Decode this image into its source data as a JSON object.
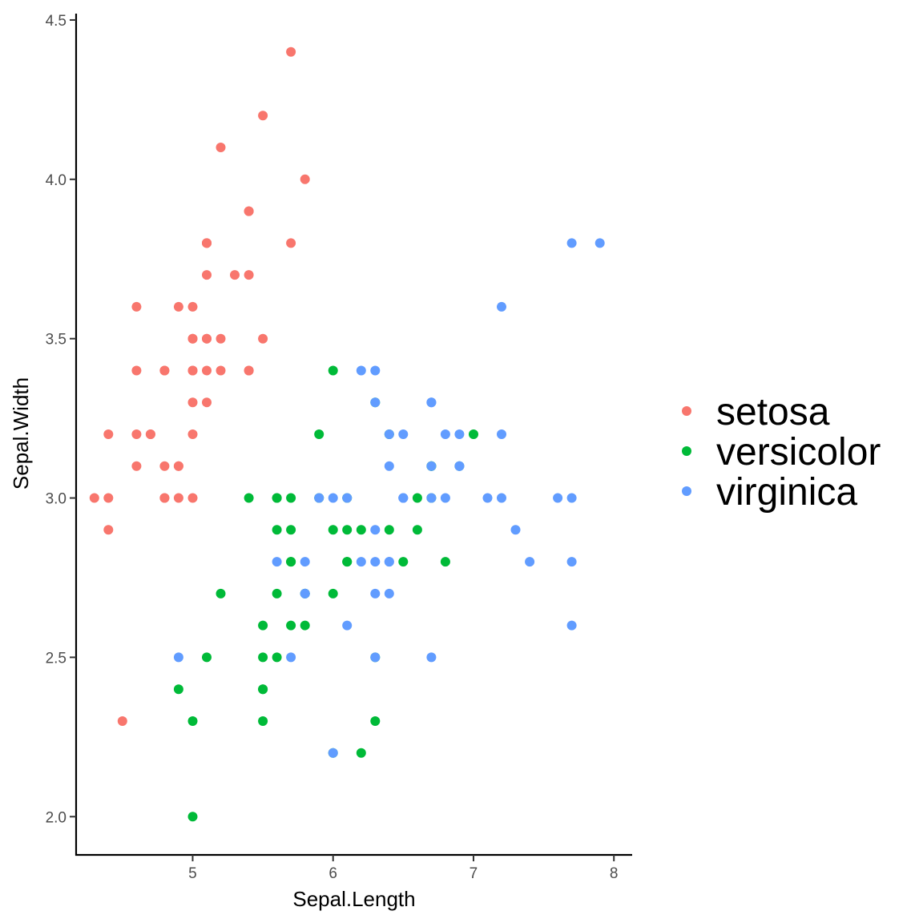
{
  "chart_data": {
    "type": "scatter",
    "xlabel": "Sepal.Length",
    "ylabel": "Sepal.Width",
    "xlim": [
      4.17,
      8.13
    ],
    "ylim": [
      1.88,
      4.52
    ],
    "x_ticks": [
      5,
      6,
      7,
      8
    ],
    "y_ticks": [
      2.0,
      2.5,
      3.0,
      3.5,
      4.0,
      4.5
    ],
    "x_tick_labels": [
      "5",
      "6",
      "7",
      "8"
    ],
    "y_tick_labels": [
      "2.0",
      "2.5",
      "3.0",
      "3.5",
      "4.0",
      "4.5"
    ],
    "grid": false,
    "legend_position": "right",
    "series": [
      {
        "name": "setosa",
        "color": "#F8766D",
        "points": [
          [
            5.1,
            3.5
          ],
          [
            4.9,
            3.0
          ],
          [
            4.7,
            3.2
          ],
          [
            4.6,
            3.1
          ],
          [
            5.0,
            3.6
          ],
          [
            5.4,
            3.9
          ],
          [
            4.6,
            3.4
          ],
          [
            5.0,
            3.4
          ],
          [
            4.4,
            2.9
          ],
          [
            4.9,
            3.1
          ],
          [
            5.4,
            3.7
          ],
          [
            4.8,
            3.4
          ],
          [
            4.8,
            3.0
          ],
          [
            4.3,
            3.0
          ],
          [
            5.8,
            4.0
          ],
          [
            5.7,
            4.4
          ],
          [
            5.4,
            3.9
          ],
          [
            5.1,
            3.5
          ],
          [
            5.7,
            3.8
          ],
          [
            5.1,
            3.8
          ],
          [
            5.4,
            3.4
          ],
          [
            5.1,
            3.7
          ],
          [
            4.6,
            3.6
          ],
          [
            5.1,
            3.3
          ],
          [
            4.8,
            3.4
          ],
          [
            5.0,
            3.0
          ],
          [
            5.0,
            3.4
          ],
          [
            5.2,
            3.5
          ],
          [
            5.2,
            3.4
          ],
          [
            4.7,
            3.2
          ],
          [
            4.8,
            3.1
          ],
          [
            5.4,
            3.4
          ],
          [
            5.2,
            4.1
          ],
          [
            5.5,
            4.2
          ],
          [
            4.9,
            3.1
          ],
          [
            5.0,
            3.2
          ],
          [
            5.5,
            3.5
          ],
          [
            4.9,
            3.6
          ],
          [
            4.4,
            3.0
          ],
          [
            5.1,
            3.4
          ],
          [
            5.0,
            3.5
          ],
          [
            4.5,
            2.3
          ],
          [
            4.4,
            3.2
          ],
          [
            5.0,
            3.5
          ],
          [
            5.1,
            3.8
          ],
          [
            4.8,
            3.0
          ],
          [
            5.1,
            3.8
          ],
          [
            4.6,
            3.2
          ],
          [
            5.3,
            3.7
          ],
          [
            5.0,
            3.3
          ]
        ]
      },
      {
        "name": "versicolor",
        "color": "#00BA38",
        "points": [
          [
            7.0,
            3.2
          ],
          [
            6.4,
            3.2
          ],
          [
            6.9,
            3.1
          ],
          [
            5.5,
            2.3
          ],
          [
            6.5,
            2.8
          ],
          [
            5.7,
            2.8
          ],
          [
            6.3,
            3.3
          ],
          [
            4.9,
            2.4
          ],
          [
            6.6,
            2.9
          ],
          [
            5.2,
            2.7
          ],
          [
            5.0,
            2.0
          ],
          [
            5.9,
            3.0
          ],
          [
            6.0,
            2.2
          ],
          [
            6.1,
            2.9
          ],
          [
            5.6,
            2.9
          ],
          [
            6.7,
            3.1
          ],
          [
            5.6,
            3.0
          ],
          [
            5.8,
            2.7
          ],
          [
            6.2,
            2.2
          ],
          [
            5.6,
            2.5
          ],
          [
            5.9,
            3.2
          ],
          [
            6.1,
            2.8
          ],
          [
            6.3,
            2.5
          ],
          [
            6.1,
            2.8
          ],
          [
            6.4,
            2.9
          ],
          [
            6.6,
            3.0
          ],
          [
            6.8,
            2.8
          ],
          [
            6.7,
            3.0
          ],
          [
            6.0,
            2.9
          ],
          [
            5.7,
            2.6
          ],
          [
            5.5,
            2.4
          ],
          [
            5.5,
            2.4
          ],
          [
            5.8,
            2.7
          ],
          [
            6.0,
            2.7
          ],
          [
            5.4,
            3.0
          ],
          [
            6.0,
            3.4
          ],
          [
            6.7,
            3.1
          ],
          [
            6.3,
            2.3
          ],
          [
            5.6,
            3.0
          ],
          [
            5.5,
            2.5
          ],
          [
            5.5,
            2.6
          ],
          [
            6.1,
            3.0
          ],
          [
            5.8,
            2.6
          ],
          [
            5.0,
            2.3
          ],
          [
            5.6,
            2.7
          ],
          [
            5.7,
            3.0
          ],
          [
            5.7,
            2.9
          ],
          [
            6.2,
            2.9
          ],
          [
            5.1,
            2.5
          ],
          [
            5.7,
            2.8
          ]
        ]
      },
      {
        "name": "virginica",
        "color": "#619CFF",
        "points": [
          [
            6.3,
            3.3
          ],
          [
            5.8,
            2.7
          ],
          [
            7.1,
            3.0
          ],
          [
            6.3,
            2.9
          ],
          [
            6.5,
            3.0
          ],
          [
            7.6,
            3.0
          ],
          [
            4.9,
            2.5
          ],
          [
            7.3,
            2.9
          ],
          [
            6.7,
            2.5
          ],
          [
            7.2,
            3.6
          ],
          [
            6.5,
            3.2
          ],
          [
            6.4,
            2.7
          ],
          [
            6.8,
            3.0
          ],
          [
            5.7,
            2.5
          ],
          [
            5.8,
            2.8
          ],
          [
            6.4,
            3.2
          ],
          [
            6.5,
            3.0
          ],
          [
            7.7,
            3.8
          ],
          [
            7.7,
            2.6
          ],
          [
            6.0,
            2.2
          ],
          [
            6.9,
            3.2
          ],
          [
            5.6,
            2.8
          ],
          [
            7.7,
            2.8
          ],
          [
            6.3,
            2.7
          ],
          [
            6.7,
            3.3
          ],
          [
            7.2,
            3.2
          ],
          [
            6.2,
            2.8
          ],
          [
            6.1,
            3.0
          ],
          [
            6.4,
            2.8
          ],
          [
            7.2,
            3.0
          ],
          [
            7.4,
            2.8
          ],
          [
            7.9,
            3.8
          ],
          [
            6.4,
            2.8
          ],
          [
            6.3,
            2.8
          ],
          [
            6.1,
            2.6
          ],
          [
            7.7,
            3.0
          ],
          [
            6.3,
            3.4
          ],
          [
            6.4,
            3.1
          ],
          [
            6.0,
            3.0
          ],
          [
            6.9,
            3.1
          ],
          [
            6.7,
            3.1
          ],
          [
            6.9,
            3.1
          ],
          [
            5.8,
            2.7
          ],
          [
            6.8,
            3.2
          ],
          [
            6.7,
            3.3
          ],
          [
            6.7,
            3.0
          ],
          [
            6.3,
            2.5
          ],
          [
            6.5,
            3.0
          ],
          [
            6.2,
            3.4
          ],
          [
            5.9,
            3.0
          ]
        ]
      }
    ]
  }
}
